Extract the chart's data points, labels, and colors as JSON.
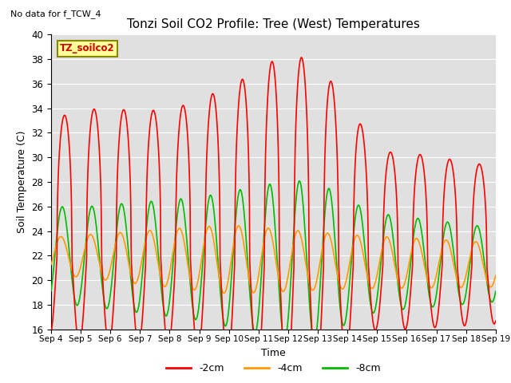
{
  "title": "Tonzi Soil CO2 Profile: Tree (West) Temperatures",
  "subtitle": "No data for f_TCW_4",
  "ylabel": "Soil Temperature (C)",
  "xlabel": "Time",
  "legend_label": "TZ_soilco2",
  "ylim": [
    16,
    40
  ],
  "yticks": [
    16,
    18,
    20,
    22,
    24,
    26,
    28,
    30,
    32,
    34,
    36,
    38,
    40
  ],
  "xtick_labels": [
    "Sep 4",
    "Sep 5",
    "Sep 6",
    "Sep 7",
    "Sep 8",
    "Sep 9",
    "Sep 10",
    "Sep 11",
    "Sep 12",
    "Sep 13",
    "Sep 14",
    "Sep 15",
    "Sep 16",
    "Sep 17",
    "Sep 18",
    "Sep 19"
  ],
  "series": {
    "-2cm": {
      "color": "#ff0000",
      "linewidth": 1.2
    },
    "-4cm": {
      "color": "#ff9900",
      "linewidth": 1.2
    },
    "-8cm": {
      "color": "#00bb00",
      "linewidth": 1.2
    }
  },
  "bg_color": "#e0e0e0",
  "fig_bg": "#ffffff",
  "legend_box_color": "#ffff99",
  "legend_box_edge": "#888800"
}
